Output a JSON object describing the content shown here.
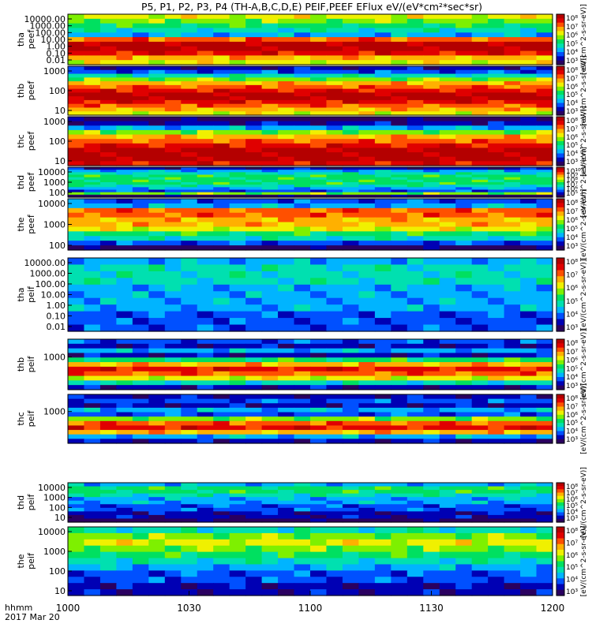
{
  "title": "P5, P1, P2, P3, P4 (TH-A,B,C,D,E) PEIF,PEEF EFlux eV/(eV*cm²*sec*sr)",
  "footer": {
    "label_line1": "hhmm",
    "label_line2": "2017 Mar 20"
  },
  "colors": {
    "palette": [
      "#2a0060",
      "#0000b4",
      "#0050ff",
      "#00b4ff",
      "#00e0b0",
      "#00e060",
      "#7ef000",
      "#f0f000",
      "#ffb000",
      "#ff5000",
      "#e00000",
      "#b40000"
    ]
  },
  "chart_data": {
    "type": "heatmap",
    "x_axis": {
      "ticks": [
        "1000",
        "1030",
        "1100",
        "1130",
        "1200"
      ]
    },
    "colorbar_label": "[eV/(cm^2-s-sr-eV)]",
    "panels": [
      {
        "probe": "tha",
        "kind": "peef",
        "ylabels": [
          "tha",
          "peef"
        ],
        "y_ticks": [
          "10000.00",
          "1000.00",
          "100.00",
          "10.00",
          "1.00",
          "0.10",
          "0.01"
        ],
        "colorbar_ticks": [
          "10⁸",
          "10⁷",
          "10⁶",
          "10⁵",
          "10⁴",
          "10³"
        ]
      },
      {
        "probe": "thb",
        "kind": "peef",
        "ylabels": [
          "thb",
          "peef"
        ],
        "y_ticks": [
          "1000",
          "100",
          "10"
        ],
        "colorbar_ticks": [
          "10⁸",
          "10⁷",
          "10⁶",
          "10⁵",
          "10⁴",
          "10³"
        ]
      },
      {
        "probe": "thc",
        "kind": "peef",
        "ylabels": [
          "thc",
          "peef"
        ],
        "y_ticks": [
          "1000",
          "100",
          "10"
        ],
        "colorbar_ticks": [
          "10⁸",
          "10⁷",
          "10⁶",
          "10⁵",
          "10⁴",
          "10³"
        ]
      },
      {
        "probe": "thd",
        "kind": "peef",
        "ylabels": [
          "thd",
          "peef"
        ],
        "y_ticks": [
          "10000",
          "1000",
          "100"
        ],
        "colorbar_ticks": [
          "10¹⁰",
          "10⁹",
          "10⁸",
          "10⁷",
          "10⁶",
          "10⁵"
        ]
      },
      {
        "probe": "the",
        "kind": "peef",
        "ylabels": [
          "the",
          "peef"
        ],
        "y_ticks": [
          "10000",
          "1000",
          "100"
        ],
        "colorbar_ticks": [
          "10⁸",
          "10⁷",
          "10⁶",
          "10⁵",
          "10⁴",
          "10³"
        ]
      },
      {
        "probe": "tha",
        "kind": "peif",
        "ylabels": [
          "tha",
          "peif"
        ],
        "y_ticks": [
          "10000.00",
          "1000.00",
          "100.00",
          "10.00",
          "1.00",
          "0.10",
          "0.01"
        ],
        "colorbar_ticks": [
          "10⁸",
          "10⁷",
          "10⁶",
          "10⁵",
          "10⁴",
          "10³"
        ]
      },
      {
        "probe": "thb",
        "kind": "peif",
        "ylabels": [
          "thb",
          "peif"
        ],
        "y_ticks": [
          "1000"
        ],
        "colorbar_ticks": [
          "10⁸",
          "10⁷",
          "10⁶",
          "10⁵",
          "10⁴",
          "10³"
        ]
      },
      {
        "probe": "thc",
        "kind": "peif",
        "ylabels": [
          "thc",
          "peif"
        ],
        "y_ticks": [
          "1000"
        ],
        "colorbar_ticks": [
          "10⁸",
          "10⁷",
          "10⁶",
          "10⁵",
          "10⁴",
          "10³"
        ]
      },
      {
        "probe": "thd",
        "kind": "peif",
        "ylabels": [
          "thd",
          "peif"
        ],
        "y_ticks": [
          "10000",
          "1000",
          "100",
          "10"
        ],
        "colorbar_ticks": [
          "10⁸",
          "10⁷",
          "10⁶",
          "10⁵",
          "10⁴",
          "10³"
        ]
      },
      {
        "probe": "the",
        "kind": "peif",
        "ylabels": [
          "the",
          "peif"
        ],
        "y_ticks": [
          "10000",
          "1000",
          "100",
          "10"
        ],
        "colorbar_ticks": [
          "10⁸",
          "10⁷",
          "10⁶",
          "10⁵",
          "10⁴",
          "10³"
        ]
      }
    ]
  }
}
